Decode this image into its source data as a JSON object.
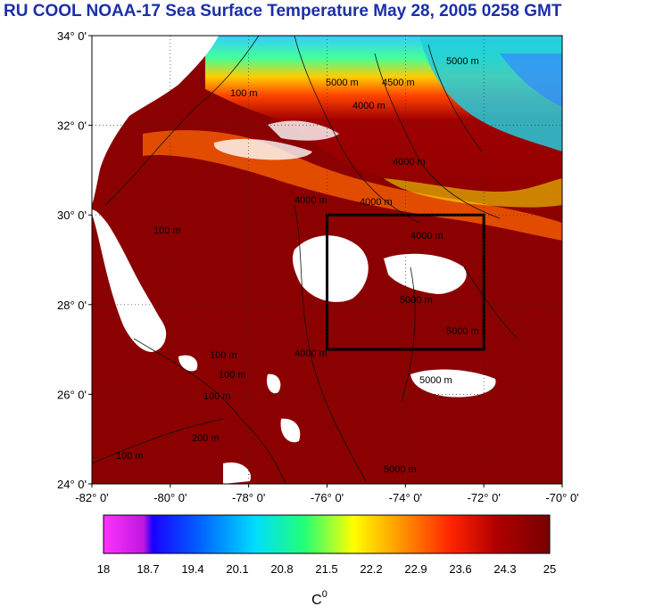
{
  "title": "RU COOL  NOAA-17 Sea Surface Temperature May 28, 2005 0258 GMT",
  "map": {
    "lat_labels": [
      "34° 0'",
      "32° 0'",
      "30° 0'",
      "28° 0'",
      "26° 0'",
      "24° 0'"
    ],
    "lon_labels": [
      "-82° 0'",
      "-80° 0'",
      "-78° 0'",
      "-76° 0'",
      "-74° 0'",
      "-72° 0'",
      "-70° 0'"
    ],
    "lat_range": [
      24,
      34
    ],
    "lon_range": [
      -82,
      -70
    ],
    "box": {
      "lon": [
        -76,
        -72
      ],
      "lat": [
        27,
        30
      ]
    },
    "contour_labels": [
      "5000 m",
      "4500 m",
      "4000 m",
      "5000 m",
      "100 m",
      "4000 m",
      "4000 m",
      "4000 m",
      "100 m",
      "4000 m",
      "100 m",
      "100 m",
      "100 m",
      "200 m",
      "5000 m",
      "5000 m",
      "5000 m",
      "4000 m",
      "100 m",
      "5000 m"
    ]
  },
  "colorbar": {
    "ticks": [
      "18",
      "18.7",
      "19.4",
      "20.1",
      "20.8",
      "21.5",
      "22.2",
      "22.9",
      "23.6",
      "24.3",
      "25"
    ],
    "unit": "C",
    "unit_sup": "0",
    "colors": [
      "#ff33ff",
      "#2200ff",
      "#0099ff",
      "#00ffee",
      "#22ff66",
      "#ffff00",
      "#ff8800",
      "#ff2200",
      "#aa0000",
      "#7a0000"
    ]
  },
  "colors": {
    "title": "#1b2fa8",
    "warm": "#8b0000",
    "land": "#ffffff",
    "box": "#000000"
  }
}
